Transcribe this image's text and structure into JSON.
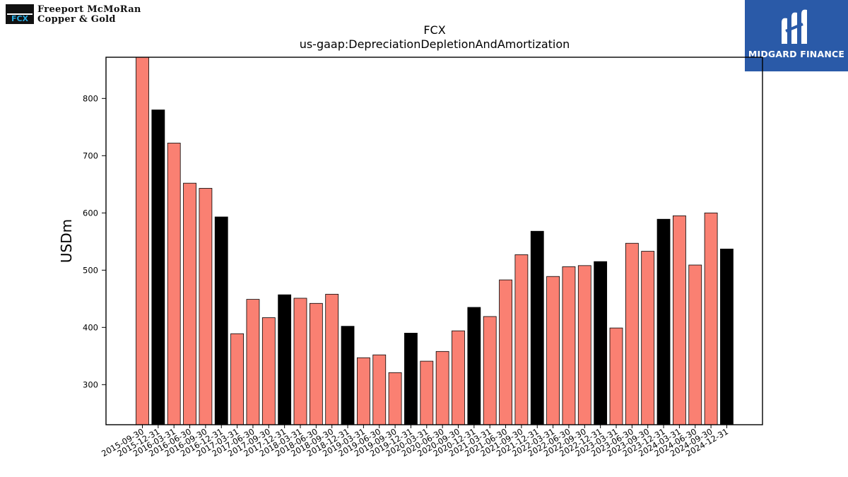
{
  "brand_left": {
    "line1": "Freeport McMoRan",
    "line2": "Copper & Gold",
    "mark": "FCX"
  },
  "brand_right": {
    "name": "MIDGARD FINANCE"
  },
  "colors": {
    "normal": "#fa8072",
    "year_end": "#000000",
    "axis": "#000000"
  },
  "chart_data": {
    "type": "bar",
    "title": "FCX",
    "subtitle": "us-gaap:DepreciationDepletionAndAmortization",
    "xlabel": "",
    "ylabel": "USDm",
    "ylim": [
      230,
      872
    ],
    "yticks": [
      300,
      400,
      500,
      600,
      700,
      800
    ],
    "grid": false,
    "legend": "none",
    "categories": [
      "2015-09-30",
      "2015-12-31",
      "2016-03-31",
      "2016-06-30",
      "2016-09-30",
      "2016-12-31",
      "2017-03-31",
      "2017-06-30",
      "2017-09-30",
      "2017-12-31",
      "2018-03-31",
      "2018-06-30",
      "2018-09-30",
      "2018-12-31",
      "2019-03-31",
      "2019-06-30",
      "2019-09-30",
      "2019-12-31",
      "2020-03-31",
      "2020-06-30",
      "2020-09-30",
      "2020-12-31",
      "2021-03-31",
      "2021-06-30",
      "2021-09-30",
      "2021-12-31",
      "2022-03-31",
      "2022-06-30",
      "2022-09-30",
      "2022-12-31",
      "2023-03-31",
      "2023-06-30",
      "2023-09-30",
      "2023-12-31",
      "2024-03-31",
      "2024-06-30",
      "2024-09-30",
      "2024-12-31"
    ],
    "values": [
      875,
      780,
      722,
      652,
      643,
      593,
      389,
      449,
      417,
      457,
      451,
      442,
      458,
      402,
      347,
      352,
      321,
      390,
      341,
      358,
      394,
      435,
      419,
      483,
      527,
      568,
      489,
      506,
      508,
      515,
      399,
      547,
      533,
      589,
      595,
      509,
      600,
      537
    ],
    "highlight": [
      false,
      true,
      false,
      false,
      false,
      true,
      false,
      false,
      false,
      true,
      false,
      false,
      false,
      true,
      false,
      false,
      false,
      true,
      false,
      false,
      false,
      true,
      false,
      false,
      false,
      true,
      false,
      false,
      false,
      true,
      false,
      false,
      false,
      true,
      false,
      false,
      false,
      true
    ]
  }
}
